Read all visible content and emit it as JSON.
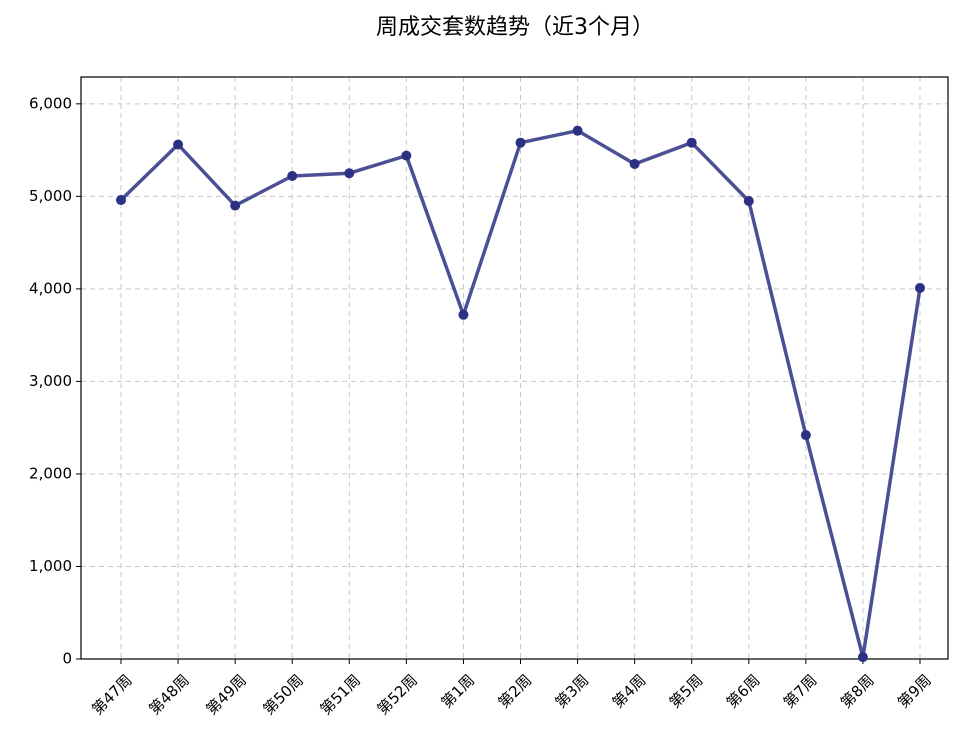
{
  "chart_data": {
    "type": "line",
    "title": "周成交套数趋势（近3个月）",
    "categories": [
      "第47周",
      "第48周",
      "第49周",
      "第50周",
      "第51周",
      "第52周",
      "第1周",
      "第2周",
      "第3周",
      "第4周",
      "第5周",
      "第6周",
      "第7周",
      "第8周",
      "第9周"
    ],
    "series": [
      {
        "name": "周成交套数",
        "color": "#2b3183",
        "values": [
          4960,
          5560,
          4900,
          5220,
          5250,
          5440,
          3720,
          5580,
          5710,
          5350,
          5580,
          4950,
          2420,
          20,
          4010
        ]
      }
    ],
    "ylim": [
      0,
      6290
    ],
    "yticks": [
      0,
      {
        "value": 1000,
        "label": "1,000"
      },
      {
        "value": 2000,
        "label": "2,000"
      },
      {
        "value": 3000,
        "label": "3,000"
      },
      {
        "value": 4000,
        "label": "4,000"
      },
      {
        "value": 5000,
        "label": "5,000"
      },
      {
        "value": 6000,
        "label": "6,000"
      }
    ],
    "grid": true
  }
}
